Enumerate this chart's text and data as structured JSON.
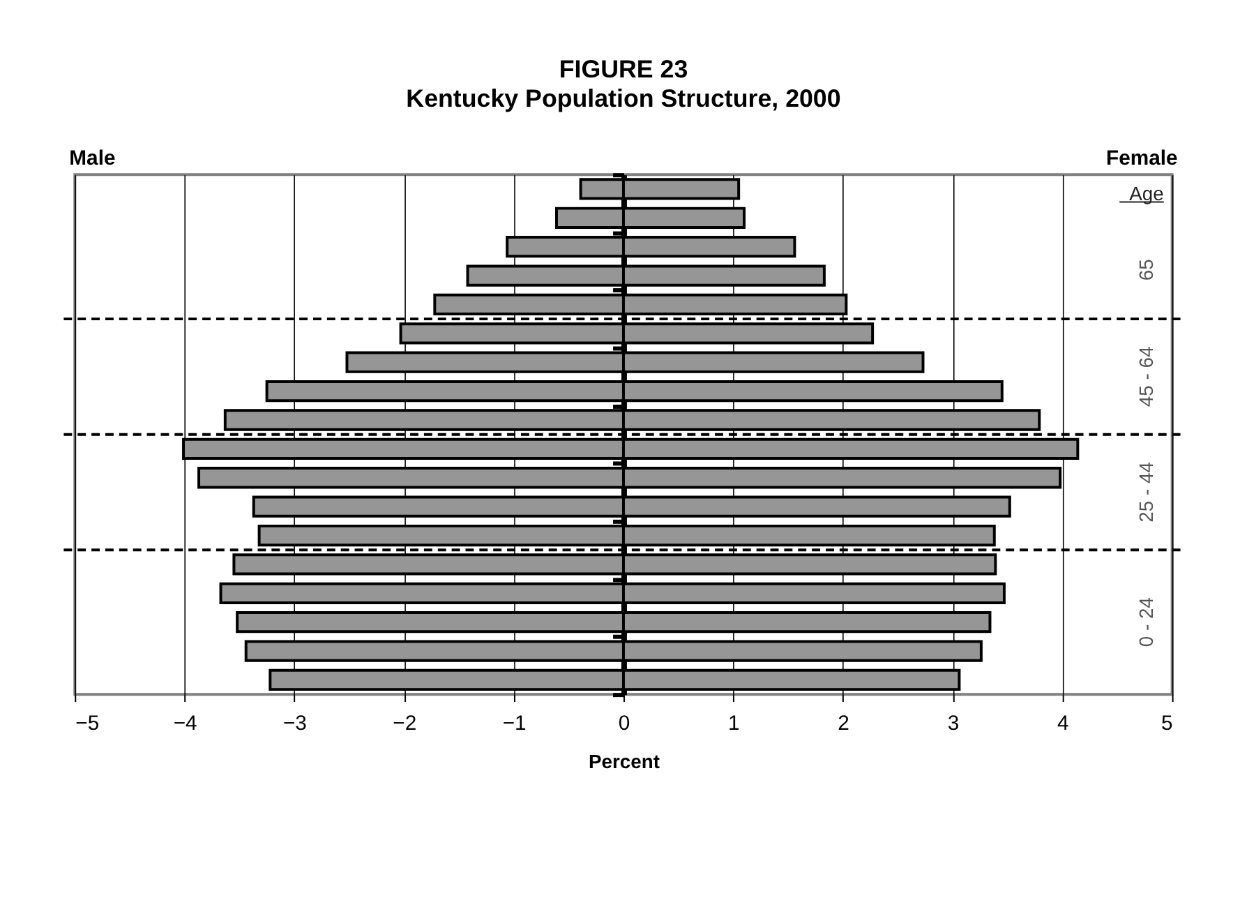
{
  "chart_data": {
    "type": "bar",
    "orientation": "horizontal",
    "stacked": true,
    "title": "FIGURE 23",
    "subtitle": "Kentucky Population Structure, 2000",
    "xlabel": "Percent",
    "categories": [
      null,
      null,
      null,
      null,
      null,
      null,
      null,
      null,
      null,
      null,
      null,
      null,
      null,
      null,
      null,
      null,
      null,
      null
    ],
    "series": [
      {
        "color": "#969696",
        "values": [
          -0.39,
          -0.61,
          -1.06,
          -1.42,
          -1.72,
          -2.03,
          -2.52,
          -3.25,
          -3.63,
          -4.01,
          -3.87,
          -3.37,
          -3.32,
          -3.55,
          -3.67,
          -3.52,
          -3.44,
          -3.22
        ]
      },
      {
        "color": "#969696",
        "values": [
          1.05,
          1.1,
          1.56,
          1.83,
          2.03,
          2.27,
          2.73,
          3.45,
          3.79,
          4.14,
          3.98,
          3.52,
          3.38,
          3.39,
          3.47,
          3.34,
          3.26,
          3.06
        ]
      }
    ],
    "xlim": [
      -5,
      5
    ],
    "xticks": [
      -5,
      -4,
      -3,
      -2,
      -1,
      0,
      1,
      2,
      3,
      4,
      5
    ],
    "grid": "x",
    "legend": false,
    "tick_labels": "x",
    "annotations": [
      "Male",
      "Female",
      "Age",
      "65",
      "45 - 64",
      "25 - 44",
      "0 - 24"
    ]
  }
}
